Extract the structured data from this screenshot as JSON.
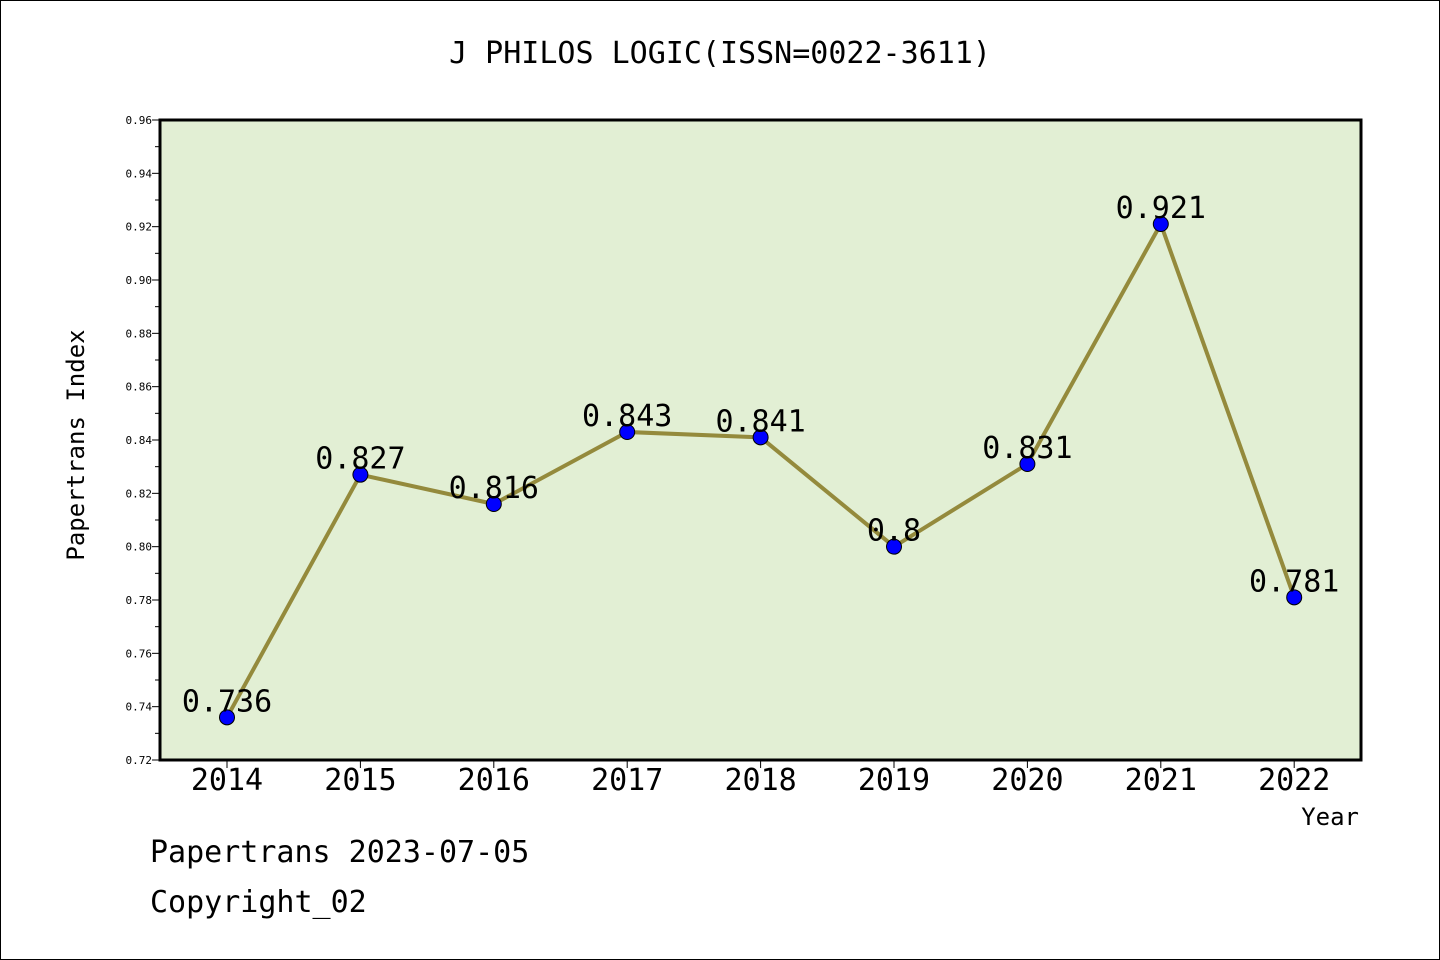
{
  "chart_data": {
    "type": "line",
    "title": "J PHILOS LOGIC(ISSN=0022-3611)",
    "xlabel": "Year",
    "ylabel": "Papertrans Index",
    "categories": [
      "2014",
      "2015",
      "2016",
      "2017",
      "2018",
      "2019",
      "2020",
      "2021",
      "2022"
    ],
    "values": [
      0.736,
      0.827,
      0.816,
      0.843,
      0.841,
      0.8,
      0.831,
      0.921,
      0.781
    ],
    "value_labels": [
      "0.736",
      "0.827",
      "0.816",
      "0.843",
      "0.841",
      "0.8",
      "0.831",
      "0.921",
      "0.781"
    ],
    "ylim": [
      0.72,
      0.96
    ],
    "yticks": [
      0.72,
      0.74,
      0.76,
      0.78,
      0.8,
      0.82,
      0.84,
      0.86,
      0.88,
      0.9,
      0.92,
      0.94,
      0.96
    ],
    "ytick_labels": [
      "0.72",
      "0.74",
      "0.76",
      "0.78",
      "0.80",
      "0.82",
      "0.84",
      "0.86",
      "0.88",
      "0.90",
      "0.92",
      "0.94",
      "0.96"
    ],
    "grid": false,
    "legend": "none",
    "colors": {
      "plot_background": "#e2efd4",
      "line": "#948a3c",
      "marker": "#0000ff",
      "axis": "#000000"
    }
  },
  "footer": {
    "date": "Papertrans 2023-07-05",
    "copyright": "Copyright_02"
  }
}
